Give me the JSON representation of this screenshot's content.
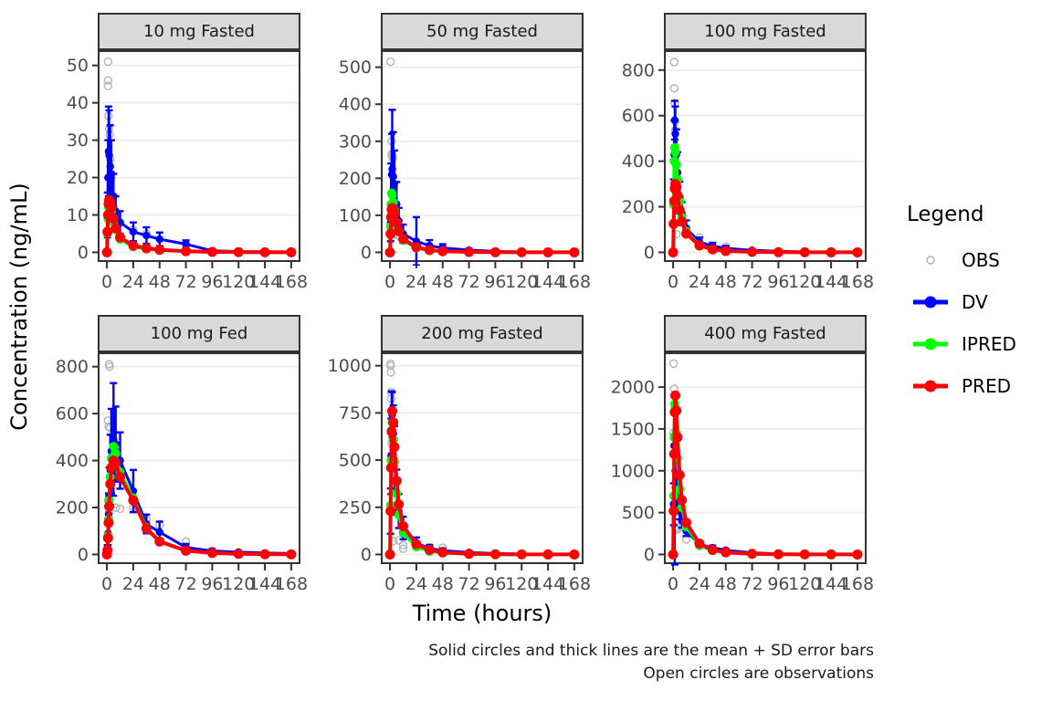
{
  "page": {
    "y_axis_label": "Concentration (ng/mL)",
    "x_axis_label": "Time (hours)",
    "caption_line1": "Solid circles and thick lines are the mean + SD error bars",
    "caption_line2": "Open circles are observations"
  },
  "legend": {
    "title": "Legend",
    "items": [
      {
        "label": "OBS",
        "type": "open-circle",
        "color": "#b3b3b3"
      },
      {
        "label": "DV",
        "type": "line-dot",
        "color": "#0000ff"
      },
      {
        "label": "IPRED",
        "type": "line-dot",
        "color": "#00ff00"
      },
      {
        "label": "PRED",
        "type": "line-dot",
        "color": "#ff0000"
      }
    ]
  },
  "chart_data": {
    "type": "line",
    "facet_layout": "2x3",
    "xlabel": "Time (hours)",
    "ylabel": "Concentration (ng/mL)",
    "x_unit": "hours",
    "xticks": [
      0,
      24,
      48,
      72,
      96,
      120,
      144,
      168
    ],
    "xlim": [
      0,
      168
    ],
    "grid": "horizontal-major-only",
    "legend_position": "right",
    "colors": {
      "OBS": "#b3b3b3",
      "DV": "#0000ff",
      "IPRED": "#00ff00",
      "PRED": "#ff0000"
    },
    "styles": {
      "OBS": "open circles, observations",
      "DV": "solid circles + thick line, mean with SD error bars",
      "IPRED": "solid circles + thick line",
      "PRED": "solid circles + thick line"
    },
    "time": [
      0,
      0.5,
      1,
      1.5,
      2,
      3,
      4,
      6,
      8,
      12,
      24,
      36,
      48,
      72,
      96,
      120,
      144,
      168
    ],
    "panels": [
      {
        "title": "10 mg Fasted",
        "ymax": 51.5,
        "yticks": [
          0,
          10,
          20,
          30,
          40,
          50
        ],
        "dv": [
          0,
          10,
          20,
          27,
          26,
          23,
          21,
          15,
          11,
          8,
          5.5,
          4.5,
          3.5,
          2.2,
          0.4,
          0.2,
          0.15,
          0.1
        ],
        "sd": [
          0,
          6,
          10,
          12,
          12,
          11,
          9,
          6,
          4,
          3,
          2.5,
          2.2,
          1.8,
          1,
          0.4,
          0.2,
          0.1,
          0.1
        ],
        "ipred": [
          0,
          5,
          9,
          12,
          13,
          12.5,
          11,
          8,
          6,
          3.5,
          1.5,
          0.9,
          0.6,
          0.25,
          0.1,
          0.05,
          0.02,
          0.01
        ],
        "pred": [
          0,
          5.5,
          10,
          13,
          14,
          13.5,
          12,
          9,
          6.5,
          4,
          1.8,
          1.1,
          0.7,
          0.3,
          0.12,
          0.05,
          0.02,
          0.01
        ],
        "obs": [
          [
            1,
            51
          ],
          [
            1,
            46
          ],
          [
            1,
            44.5
          ],
          [
            1.5,
            36.5
          ],
          [
            2,
            33
          ],
          [
            2.5,
            31.5
          ],
          [
            3,
            25
          ],
          [
            4,
            20
          ],
          [
            5,
            14.5
          ],
          [
            6,
            12
          ],
          [
            8,
            10
          ],
          [
            12,
            8
          ],
          [
            24,
            6
          ],
          [
            36,
            5
          ]
        ]
      },
      {
        "title": "50 mg Fasted",
        "ymax": 520,
        "yticks": [
          0,
          100,
          200,
          300,
          400,
          500
        ],
        "dv": [
          0,
          80,
          160,
          210,
          225,
          205,
          185,
          130,
          85,
          50,
          30,
          18,
          12,
          6,
          2.5,
          1,
          0.5,
          0.3
        ],
        "sd": [
          0,
          50,
          80,
          110,
          160,
          120,
          90,
          60,
          35,
          25,
          65,
          15,
          10,
          4,
          1.5,
          0.8,
          0.3,
          0.2
        ],
        "ipred": [
          0,
          70,
          130,
          160,
          155,
          135,
          115,
          80,
          55,
          32,
          12,
          5,
          2.5,
          0.8,
          0.25,
          0.1,
          0.03,
          0.01
        ],
        "pred": [
          0,
          50,
          95,
          115,
          120,
          115,
          105,
          80,
          58,
          36,
          14,
          6,
          3,
          1,
          0.3,
          0.1,
          0.04,
          0.02
        ],
        "obs": [
          [
            0.5,
            515
          ],
          [
            1.5,
            300
          ],
          [
            1.5,
            265
          ],
          [
            2,
            260
          ],
          [
            2.5,
            255
          ],
          [
            2,
            90
          ],
          [
            3,
            135
          ],
          [
            4,
            100
          ],
          [
            4,
            50
          ],
          [
            6,
            70
          ],
          [
            8,
            45
          ],
          [
            12,
            35
          ],
          [
            24,
            20
          ],
          [
            36,
            12
          ]
        ]
      },
      {
        "title": "100 mg Fasted",
        "ymax": 845,
        "yticks": [
          0,
          200,
          400,
          600,
          800
        ],
        "dv": [
          0,
          220,
          430,
          580,
          520,
          430,
          350,
          240,
          170,
          105,
          45,
          28,
          18,
          9,
          5,
          2,
          1,
          0.5
        ],
        "sd": [
          0,
          100,
          150,
          85,
          120,
          110,
          90,
          70,
          50,
          35,
          20,
          14,
          10,
          5,
          2,
          1,
          0.5,
          0.3
        ],
        "ipred": [
          0,
          210,
          400,
          460,
          440,
          385,
          320,
          225,
          155,
          92,
          32,
          14,
          7,
          2,
          0.7,
          0.2,
          0.1,
          0.05
        ],
        "pred": [
          0,
          125,
          225,
          280,
          300,
          285,
          250,
          185,
          135,
          82,
          30,
          13,
          6,
          2,
          0.6,
          0.2,
          0.1,
          0.04
        ],
        "obs": [
          [
            1,
            835
          ],
          [
            1,
            720
          ],
          [
            1.5,
            655
          ],
          [
            2,
            575
          ],
          [
            2,
            535
          ],
          [
            2.5,
            300
          ],
          [
            3,
            290
          ],
          [
            3,
            80
          ],
          [
            4,
            245
          ],
          [
            6,
            240
          ],
          [
            8,
            155
          ],
          [
            12,
            105
          ],
          [
            24,
            65
          ],
          [
            48,
            25
          ]
        ]
      },
      {
        "title": "100 mg Fed",
        "ymax": 820,
        "yticks": [
          0,
          200,
          400,
          600,
          800
        ],
        "dv": [
          0,
          25,
          90,
          170,
          250,
          360,
          440,
          490,
          470,
          400,
          270,
          130,
          95,
          30,
          15,
          10,
          6,
          4
        ],
        "sd": [
          0,
          15,
          50,
          90,
          120,
          150,
          180,
          240,
          160,
          120,
          90,
          40,
          45,
          15,
          8,
          5,
          3,
          2
        ],
        "ipred": [
          0,
          20,
          80,
          150,
          230,
          330,
          410,
          460,
          430,
          350,
          240,
          115,
          58,
          17,
          7,
          3,
          1,
          0.5
        ],
        "pred": [
          0,
          18,
          70,
          135,
          205,
          300,
          370,
          400,
          390,
          330,
          230,
          110,
          55,
          16,
          6,
          2.5,
          1,
          0.5
        ],
        "obs": [
          [
            2,
            810
          ],
          [
            2.5,
            800
          ],
          [
            1,
            570
          ],
          [
            1.5,
            545
          ],
          [
            3,
            540
          ],
          [
            1,
            230
          ],
          [
            2,
            180
          ],
          [
            4,
            405
          ],
          [
            6,
            340
          ],
          [
            8,
            200
          ],
          [
            12,
            195
          ],
          [
            24,
            200
          ],
          [
            36,
            150
          ],
          [
            36,
            110
          ],
          [
            48,
            125
          ],
          [
            72,
            55
          ]
        ]
      },
      {
        "title": "200 mg Fasted",
        "ymax": 1020,
        "yticks": [
          0,
          250,
          500,
          750,
          1000
        ],
        "dv": [
          0,
          230,
          520,
          700,
          740,
          640,
          500,
          330,
          230,
          140,
          60,
          32,
          20,
          10,
          5,
          2,
          1,
          0.5
        ],
        "sd": [
          0,
          120,
          200,
          165,
          120,
          150,
          180,
          120,
          90,
          60,
          30,
          18,
          12,
          5,
          2,
          1,
          0.5,
          0.3
        ],
        "ipred": [
          0,
          260,
          500,
          660,
          700,
          610,
          490,
          320,
          210,
          115,
          40,
          17,
          8,
          2.5,
          0.8,
          0.3,
          0.1,
          0.05
        ],
        "pred": [
          0,
          230,
          460,
          650,
          760,
          700,
          570,
          390,
          265,
          150,
          55,
          24,
          11,
          3.5,
          1.2,
          0.4,
          0.15,
          0.06
        ],
        "obs": [
          [
            0.5,
            1010
          ],
          [
            0.5,
            1000
          ],
          [
            0.75,
            965
          ],
          [
            1,
            860
          ],
          [
            1,
            825
          ],
          [
            1.5,
            590
          ],
          [
            2,
            240
          ],
          [
            3,
            70
          ],
          [
            8,
            75
          ],
          [
            12,
            50
          ],
          [
            12,
            30
          ],
          [
            24,
            55
          ],
          [
            36,
            40
          ],
          [
            48,
            35
          ]
        ]
      },
      {
        "title": "400 mg Fasted",
        "ymax": 2300,
        "yticks": [
          0,
          500,
          1000,
          1500,
          2000
        ],
        "dv": [
          0,
          600,
          1300,
          525,
          1000,
          820,
          700,
          520,
          400,
          280,
          120,
          80,
          50,
          20,
          8,
          4,
          2,
          1
        ],
        "sd": [
          0,
          250,
          130,
          645,
          200,
          150,
          130,
          100,
          80,
          60,
          35,
          25,
          18,
          10,
          4,
          2,
          1,
          0.5
        ],
        "ipred": [
          0,
          700,
          1400,
          1800,
          1750,
          1450,
          1150,
          780,
          560,
          330,
          110,
          45,
          20,
          6,
          2,
          0.7,
          0.3,
          0.1
        ],
        "pred": [
          0,
          520,
          1200,
          1700,
          1900,
          1720,
          1400,
          950,
          650,
          380,
          130,
          55,
          25,
          8,
          2.5,
          0.9,
          0.4,
          0.15
        ],
        "obs": [
          [
            0.5,
            2280
          ],
          [
            1,
            1980
          ],
          [
            0.5,
            1450
          ],
          [
            1,
            610
          ],
          [
            2,
            600
          ],
          [
            1.5,
            500
          ],
          [
            2,
            330
          ],
          [
            3,
            310
          ],
          [
            4,
            300
          ],
          [
            8,
            330
          ],
          [
            12,
            180
          ],
          [
            24,
            100
          ]
        ]
      }
    ]
  }
}
